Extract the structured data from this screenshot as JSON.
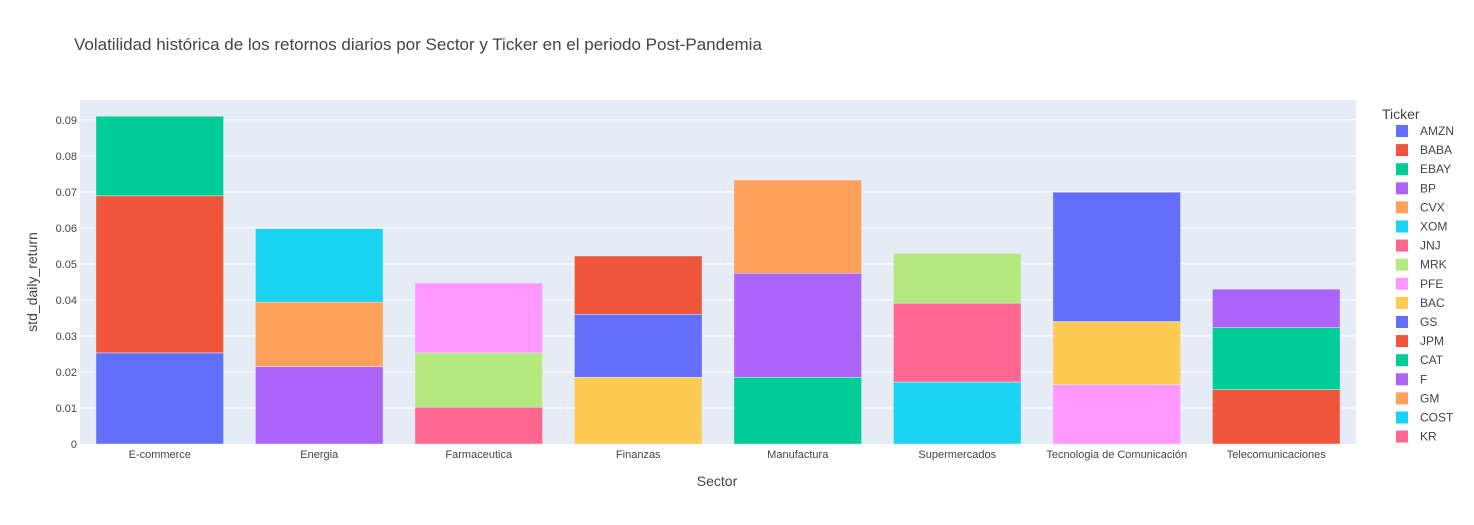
{
  "chart_data": {
    "type": "bar",
    "barmode": "stack",
    "title": "Volatilidad histórica de los retornos diarios por Sector y Ticker en el periodo Post-Pandemia",
    "xlabel": "Sector",
    "ylabel": "std_daily_return",
    "ylim": [
      0,
      0.0955
    ],
    "yticks": [
      "0",
      "0.01",
      "0.02",
      "0.03",
      "0.04",
      "0.05",
      "0.06",
      "0.07",
      "0.08",
      "0.09"
    ],
    "grid": true,
    "legend_title": "Ticker",
    "legend_position": "right",
    "categories": [
      "E-commerce",
      "Energia",
      "Farmaceutica",
      "Finanzas",
      "Manufactura",
      "Supermercados",
      "Tecnologia de Comunicación",
      "Telecomunicaciones"
    ],
    "series": [
      {
        "name": "AMZN",
        "color": "#636efa",
        "values": [
          0.0253,
          null,
          null,
          null,
          null,
          null,
          null,
          null
        ]
      },
      {
        "name": "BABA",
        "color": "#EF553B",
        "values": [
          0.0436,
          null,
          null,
          null,
          null,
          null,
          null,
          null
        ]
      },
      {
        "name": "EBAY",
        "color": "#00cc96",
        "values": [
          0.0221,
          null,
          null,
          null,
          null,
          null,
          null,
          null
        ]
      },
      {
        "name": "BP",
        "color": "#ab63fa",
        "values": [
          null,
          0.0215,
          null,
          null,
          null,
          null,
          null,
          null
        ]
      },
      {
        "name": "CVX",
        "color": "#FFA15A",
        "values": [
          null,
          0.0179,
          null,
          null,
          null,
          null,
          null,
          null
        ]
      },
      {
        "name": "XOM",
        "color": "#19d3f3",
        "values": [
          null,
          0.0204,
          null,
          null,
          null,
          null,
          null,
          null
        ]
      },
      {
        "name": "JNJ",
        "color": "#FF6692",
        "values": [
          null,
          null,
          0.0102,
          null,
          null,
          null,
          null,
          null
        ]
      },
      {
        "name": "MRK",
        "color": "#B6E880",
        "values": [
          null,
          null,
          0.0151,
          null,
          null,
          null,
          null,
          null
        ]
      },
      {
        "name": "PFE",
        "color": "#FF97FF",
        "values": [
          null,
          null,
          0.0194,
          null,
          null,
          null,
          null,
          null
        ]
      },
      {
        "name": "BAC",
        "color": "#FECB52",
        "values": [
          null,
          null,
          null,
          0.0185,
          null,
          null,
          null,
          null
        ]
      },
      {
        "name": "GS",
        "color": "#636efa",
        "values": [
          null,
          null,
          null,
          0.0175,
          null,
          null,
          null,
          null
        ]
      },
      {
        "name": "JPM",
        "color": "#EF553B",
        "values": [
          null,
          null,
          null,
          0.0162,
          null,
          null,
          null,
          null
        ]
      },
      {
        "name": "CAT",
        "color": "#00cc96",
        "values": [
          null,
          null,
          null,
          null,
          0.0185,
          null,
          null,
          null
        ]
      },
      {
        "name": "F",
        "color": "#ab63fa",
        "values": [
          null,
          null,
          null,
          null,
          0.0289,
          null,
          null,
          null
        ]
      },
      {
        "name": "GM",
        "color": "#FFA15A",
        "values": [
          null,
          null,
          null,
          null,
          0.0259,
          null,
          null,
          null
        ]
      },
      {
        "name": "COST",
        "color": "#19d3f3",
        "values": [
          null,
          null,
          null,
          null,
          null,
          0.0172,
          null,
          null
        ]
      },
      {
        "name": "KR",
        "color": "#FF6692",
        "values": [
          null,
          null,
          null,
          null,
          null,
          0.0219,
          null,
          null
        ]
      },
      {
        "name": "",
        "color": "#B6E880",
        "values": [
          null,
          null,
          null,
          null,
          null,
          0.0138,
          null,
          null
        ]
      },
      {
        "name": "",
        "color": "#FF97FF",
        "values": [
          null,
          null,
          null,
          null,
          null,
          null,
          0.0165,
          null
        ]
      },
      {
        "name": "",
        "color": "#FECB52",
        "values": [
          null,
          null,
          null,
          null,
          null,
          null,
          0.0175,
          null
        ]
      },
      {
        "name": "",
        "color": "#636efa",
        "values": [
          null,
          null,
          null,
          null,
          null,
          null,
          0.0359,
          null
        ]
      },
      {
        "name": "",
        "color": "#EF553B",
        "values": [
          null,
          null,
          null,
          null,
          null,
          null,
          null,
          0.0151
        ]
      },
      {
        "name": "",
        "color": "#00cc96",
        "values": [
          null,
          null,
          null,
          null,
          null,
          null,
          null,
          0.0172
        ]
      },
      {
        "name": "",
        "color": "#ab63fa",
        "values": [
          null,
          null,
          null,
          null,
          null,
          null,
          null,
          0.0107
        ]
      }
    ]
  }
}
